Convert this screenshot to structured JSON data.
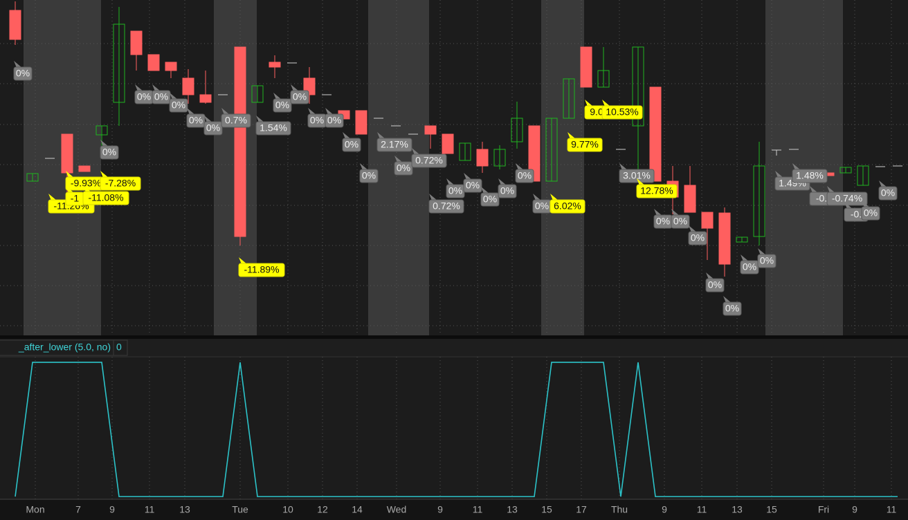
{
  "chart_data": {
    "type": "candlestick",
    "xlim": [
      -0.88,
      51.6
    ],
    "ylim": [
      0,
      485
    ],
    "yticks": [
      14,
      72,
      130,
      188,
      247,
      305,
      364,
      422
    ],
    "grid": true,
    "up_color": "#1fb51f",
    "down_color": "#ff5f5f",
    "flat_color": "#cfcfcf",
    "extended_hours": [
      [
        0.48,
        4.96
      ],
      [
        11.48,
        13.96
      ],
      [
        20.4,
        23.92
      ],
      [
        30.4,
        32.88
      ],
      [
        43.36,
        47.84
      ]
    ],
    "xticks": [
      {
        "value": 1.16,
        "label": "Mon"
      },
      {
        "value": 3.64,
        "label": "7"
      },
      {
        "value": 5.6,
        "label": "9"
      },
      {
        "value": 7.76,
        "label": "11"
      },
      {
        "value": 9.8,
        "label": "13"
      },
      {
        "value": 13,
        "label": "Tue"
      },
      {
        "value": 15.76,
        "label": "10"
      },
      {
        "value": 17.76,
        "label": "12"
      },
      {
        "value": 19.76,
        "label": "14"
      },
      {
        "value": 22.04,
        "label": "Wed"
      },
      {
        "value": 24.56,
        "label": "9"
      },
      {
        "value": 26.72,
        "label": "11"
      },
      {
        "value": 28.72,
        "label": "13"
      },
      {
        "value": 30.72,
        "label": "15"
      },
      {
        "value": 32.72,
        "label": "17"
      },
      {
        "value": 34.92,
        "label": "Thu"
      },
      {
        "value": 37.52,
        "label": "9"
      },
      {
        "value": 39.68,
        "label": "11"
      },
      {
        "value": 41.72,
        "label": "13"
      },
      {
        "value": 43.72,
        "label": "15"
      },
      {
        "value": 46.72,
        "label": "Fri"
      },
      {
        "value": 48.52,
        "label": "9"
      },
      {
        "value": 50.64,
        "label": "11"
      }
    ],
    "candles": [
      {
        "o": 470,
        "h": 483,
        "l": 420,
        "c": 428
      },
      {
        "o": 223,
        "h": 234,
        "l": 223,
        "c": 234
      },
      {
        "o": 256,
        "h": 256,
        "l": 256,
        "c": 256
      },
      {
        "o": 291,
        "h": 291,
        "l": 205,
        "c": 235
      },
      {
        "o": 245,
        "h": 245,
        "l": 237,
        "c": 237
      },
      {
        "o": 290,
        "h": 303,
        "l": 257,
        "c": 303
      },
      {
        "o": 337,
        "h": 475,
        "l": 303,
        "c": 450
      },
      {
        "o": 440,
        "h": 440,
        "l": 383,
        "c": 406
      },
      {
        "o": 406,
        "h": 406,
        "l": 383,
        "c": 383
      },
      {
        "o": 395,
        "h": 395,
        "l": 372,
        "c": 383
      },
      {
        "o": 372,
        "h": 385,
        "l": 335,
        "c": 348
      },
      {
        "o": 348,
        "h": 383,
        "l": 335,
        "c": 337
      },
      {
        "o": 348,
        "h": 348,
        "l": 348,
        "c": 348
      },
      {
        "o": 417,
        "h": 417,
        "l": 130,
        "c": 143
      },
      {
        "o": 337,
        "h": 361,
        "l": 337,
        "c": 361
      },
      {
        "o": 395,
        "h": 405,
        "l": 372,
        "c": 388
      },
      {
        "o": 394,
        "h": 394,
        "l": 394,
        "c": 394
      },
      {
        "o": 372,
        "h": 388,
        "l": 335,
        "c": 348
      },
      {
        "o": 348,
        "h": 348,
        "l": 348,
        "c": 348
      },
      {
        "o": 325,
        "h": 325,
        "l": 313,
        "c": 313
      },
      {
        "o": 325,
        "h": 325,
        "l": 291,
        "c": 291
      },
      {
        "o": 314,
        "h": 314,
        "l": 314,
        "c": 314
      },
      {
        "o": 303,
        "h": 303,
        "l": 303,
        "c": 303
      },
      {
        "o": 291,
        "h": 291,
        "l": 291,
        "c": 291
      },
      {
        "o": 303,
        "h": 303,
        "l": 270,
        "c": 291
      },
      {
        "o": 291,
        "h": 291,
        "l": 263,
        "c": 263
      },
      {
        "o": 253,
        "h": 278,
        "l": 253,
        "c": 278
      },
      {
        "o": 269,
        "h": 280,
        "l": 235,
        "c": 245
      },
      {
        "o": 245,
        "h": 275,
        "l": 240,
        "c": 269
      },
      {
        "o": 280,
        "h": 338,
        "l": 270,
        "c": 314
      },
      {
        "o": 303,
        "h": 303,
        "l": 223,
        "c": 223
      },
      {
        "o": 223,
        "h": 314,
        "l": 223,
        "c": 314
      },
      {
        "o": 314,
        "h": 371,
        "l": 314,
        "c": 371
      },
      {
        "o": 417,
        "h": 417,
        "l": 359,
        "c": 359
      },
      {
        "o": 359,
        "h": 417,
        "l": 359,
        "c": 383
      },
      {
        "o": 269,
        "h": 269,
        "l": 269,
        "c": 269
      },
      {
        "o": 303,
        "h": 417,
        "l": 223,
        "c": 417
      },
      {
        "o": 359,
        "h": 359,
        "l": 223,
        "c": 223
      },
      {
        "o": 223,
        "h": 245,
        "l": 175,
        "c": 200
      },
      {
        "o": 217,
        "h": 245,
        "l": 178,
        "c": 178
      },
      {
        "o": 178,
        "h": 178,
        "l": 109,
        "c": 155
      },
      {
        "o": 177,
        "h": 185,
        "l": 85,
        "c": 103
      },
      {
        "o": 135,
        "h": 142,
        "l": 135,
        "c": 142
      },
      {
        "o": 143,
        "h": 280,
        "l": 130,
        "c": 245
      },
      {
        "o": 268,
        "h": 268,
        "l": 260,
        "c": 268
      },
      {
        "o": 269,
        "h": 269,
        "l": 269,
        "c": 269
      },
      {
        "o": 233,
        "h": 233,
        "l": 233,
        "c": 233
      },
      {
        "o": 235,
        "h": 235,
        "l": 231,
        "c": 231
      },
      {
        "o": 235,
        "h": 243,
        "l": 235,
        "c": 243
      },
      {
        "o": 217,
        "h": 245,
        "l": 217,
        "c": 245
      },
      {
        "o": 244,
        "h": 244,
        "l": 244,
        "c": 244
      },
      {
        "o": 245,
        "h": 245,
        "l": 245,
        "c": 245
      }
    ],
    "annotations": [
      {
        "candle": 0,
        "price": 397,
        "text": "0%",
        "color": "gray"
      },
      {
        "candle": 2,
        "price": 205,
        "text": "-11.26%",
        "color": "yellow"
      },
      {
        "candle": 3,
        "price": 238,
        "text": "-9.93%",
        "color": "yellow"
      },
      {
        "candle": 3,
        "price": 216,
        "text": "-1",
        "color": "yellow"
      },
      {
        "candle": 4,
        "price": 217,
        "text": "-11.08%",
        "color": "yellow"
      },
      {
        "candle": 5,
        "price": 238,
        "text": "-7.28%",
        "color": "yellow"
      },
      {
        "candle": 5,
        "price": 283,
        "text": "0%",
        "color": "gray"
      },
      {
        "candle": 7,
        "price": 363,
        "text": "0%",
        "color": "gray"
      },
      {
        "candle": 8,
        "price": 363,
        "text": "0%",
        "color": "gray"
      },
      {
        "candle": 9,
        "price": 351,
        "text": "0%",
        "color": "gray"
      },
      {
        "candle": 10,
        "price": 329,
        "text": "0%",
        "color": "gray"
      },
      {
        "candle": 11,
        "price": 318,
        "text": "0%",
        "color": "gray"
      },
      {
        "candle": 12,
        "price": 329,
        "text": "0.7%",
        "color": "gray"
      },
      {
        "candle": 13,
        "price": 113,
        "text": "-11.89%",
        "color": "yellow"
      },
      {
        "candle": 14,
        "price": 318,
        "text": "1.54%",
        "color": "gray"
      },
      {
        "candle": 15,
        "price": 351,
        "text": "0%",
        "color": "gray"
      },
      {
        "candle": 16,
        "price": 363,
        "text": "0%",
        "color": "gray"
      },
      {
        "candle": 17,
        "price": 329,
        "text": "0%",
        "color": "gray"
      },
      {
        "candle": 18,
        "price": 329,
        "text": "0%",
        "color": "gray"
      },
      {
        "candle": 19,
        "price": 294,
        "text": "0%",
        "color": "gray"
      },
      {
        "candle": 20,
        "price": 249,
        "text": "0%",
        "color": "gray"
      },
      {
        "candle": 21,
        "price": 294,
        "text": "2.17%",
        "color": "gray"
      },
      {
        "candle": 22,
        "price": 260,
        "text": "0%",
        "color": "gray"
      },
      {
        "candle": 23,
        "price": 271,
        "text": "0.72%",
        "color": "gray"
      },
      {
        "candle": 24,
        "price": 205,
        "text": "0.72%",
        "color": "gray"
      },
      {
        "candle": 25,
        "price": 227,
        "text": "0%",
        "color": "gray"
      },
      {
        "candle": 26,
        "price": 235,
        "text": "0%",
        "color": "gray"
      },
      {
        "candle": 27,
        "price": 215,
        "text": "0%",
        "color": "gray"
      },
      {
        "candle": 28,
        "price": 227,
        "text": "0%",
        "color": "gray"
      },
      {
        "candle": 29,
        "price": 249,
        "text": "0%",
        "color": "gray"
      },
      {
        "candle": 30,
        "price": 205,
        "text": "0%",
        "color": "gray"
      },
      {
        "candle": 31,
        "price": 205,
        "text": "6.02%",
        "color": "yellow"
      },
      {
        "candle": 32,
        "price": 294,
        "text": "9.77%",
        "color": "yellow"
      },
      {
        "candle": 33,
        "price": 341,
        "text": "9.0",
        "color": "yellow"
      },
      {
        "candle": 34,
        "price": 341,
        "text": "10.53%",
        "color": "yellow"
      },
      {
        "candle": 35,
        "price": 249,
        "text": "3.01%",
        "color": "gray"
      },
      {
        "candle": 36,
        "price": 227,
        "text": "12.78%",
        "color": "yellow"
      },
      {
        "candle": 37,
        "price": 183,
        "text": "0%",
        "color": "gray"
      },
      {
        "candle": 38,
        "price": 183,
        "text": "0%",
        "color": "gray"
      },
      {
        "candle": 39,
        "price": 159,
        "text": "0%",
        "color": "gray"
      },
      {
        "candle": 40,
        "price": 91,
        "text": "0%",
        "color": "gray"
      },
      {
        "candle": 41,
        "price": 57,
        "text": "0%",
        "color": "gray"
      },
      {
        "candle": 42,
        "price": 117,
        "text": "0%",
        "color": "gray"
      },
      {
        "candle": 43,
        "price": 126,
        "text": "0%",
        "color": "gray"
      },
      {
        "candle": 44,
        "price": 238,
        "text": "1.49%",
        "color": "gray"
      },
      {
        "candle": 45,
        "price": 249,
        "text": "1.48%",
        "color": "gray"
      },
      {
        "candle": 46,
        "price": 216,
        "text": "-0.",
        "color": "gray"
      },
      {
        "candle": 47,
        "price": 216,
        "text": "-0.74%",
        "color": "gray"
      },
      {
        "candle": 48,
        "price": 193,
        "text": "-0.",
        "color": "gray"
      },
      {
        "candle": 49,
        "price": 195,
        "text": "0%",
        "color": "gray"
      },
      {
        "candle": 50,
        "price": 224,
        "text": "0%",
        "color": "gray"
      }
    ],
    "indicator": {
      "type": "line",
      "label": "_after_lower (5.0, no)",
      "current_value": 0,
      "color": "#2cc3c9",
      "ylim": [
        -0.02,
        1.175
      ],
      "values": [
        0,
        1,
        1,
        1,
        1,
        1,
        0,
        0,
        0,
        0,
        0,
        0,
        0,
        1,
        0,
        0,
        0,
        0,
        0,
        0,
        0,
        0,
        0,
        0,
        0,
        0,
        0,
        0,
        0,
        0,
        0,
        1,
        1,
        1,
        1,
        0,
        1,
        0,
        0,
        0,
        0,
        0,
        0,
        0,
        0,
        0,
        0,
        0,
        0,
        0,
        0,
        0
      ]
    }
  }
}
